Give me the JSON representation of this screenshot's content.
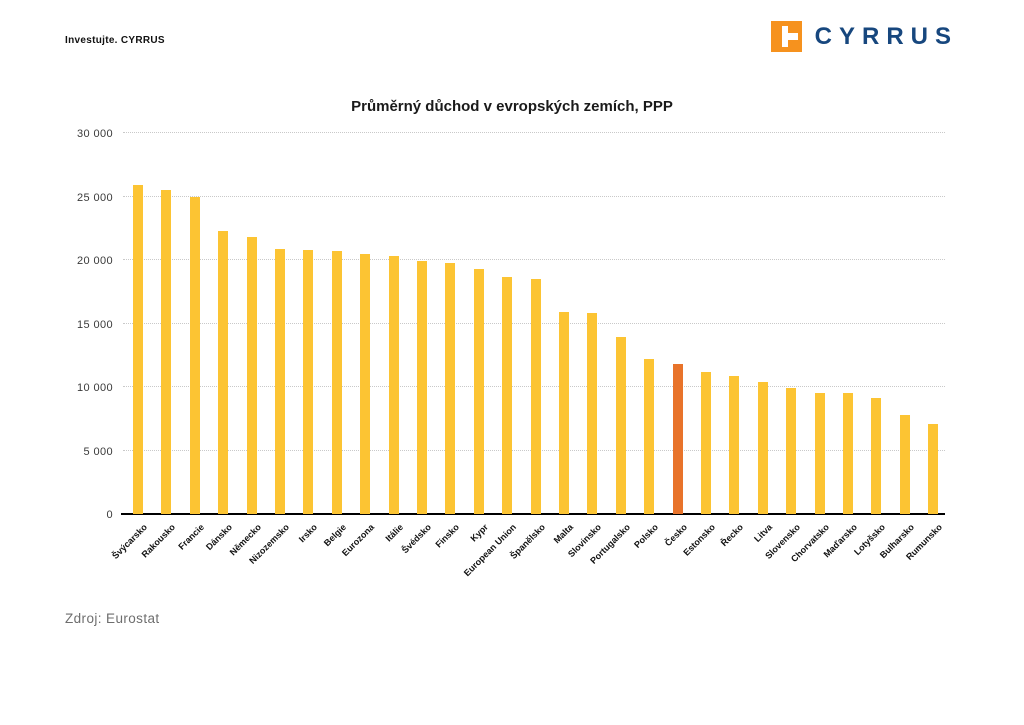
{
  "header": {
    "tagline": "Investujte. CYRRUS",
    "logo_text": "CYRRUS"
  },
  "footer": {
    "source": "Zdroj: Eurostat"
  },
  "colors": {
    "bar": "#FCC433",
    "highlight_bar": "#E8732A",
    "logo_orange": "#F6921E",
    "logo_navy": "#17477E",
    "gridline": "#c9c9c9",
    "axis": "#000000"
  },
  "chart_data": {
    "type": "bar",
    "title": "Průměrný důchod v evropských zemích, PPP",
    "categories": [
      "Švýcarsko",
      "Rakousko",
      "Francie",
      "Dánsko",
      "Německo",
      "Nizozemsko",
      "Irsko",
      "Belgie",
      "Eurozona",
      "Itálie",
      "Švédsko",
      "Finsko",
      "Kypr",
      "European Union",
      "Španělsko",
      "Malta",
      "Slovinsko",
      "Portugalsko",
      "Polsko",
      "Česko",
      "Estonsko",
      "Řecko",
      "Litva",
      "Slovensko",
      "Chorvatsko",
      "Maďarsko",
      "Lotyšsko",
      "Bulharsko",
      "Rumunsko"
    ],
    "values": [
      25900,
      25500,
      25000,
      22300,
      21800,
      20900,
      20800,
      20700,
      20500,
      20300,
      19900,
      19800,
      19300,
      18700,
      18500,
      15900,
      15800,
      13900,
      12200,
      11800,
      11200,
      10900,
      10400,
      9900,
      9500,
      9500,
      9100,
      7800,
      7100
    ],
    "highlight_category": "Česko",
    "xlabel": "",
    "ylabel": "",
    "ylim": [
      0,
      30000
    ],
    "ytick_step": 5000,
    "ytick_labels": [
      "0",
      "5 000",
      "10 000",
      "15 000",
      "20 000",
      "25 000",
      "30 000"
    ],
    "grid": "horizontal-dotted",
    "legend": "none"
  }
}
